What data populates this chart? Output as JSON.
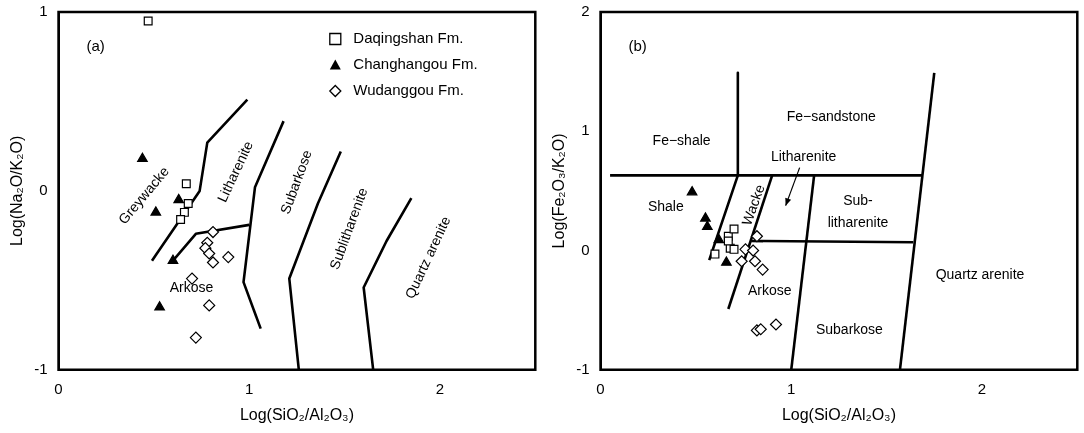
{
  "chart_data": [
    {
      "type": "scatter",
      "title": "(a)",
      "xlabel": "Log(SiO₂/Al₂O₃)",
      "ylabel": "Log(Na₂O/K₂O)",
      "xlim": [
        0,
        2.5
      ],
      "ylim": [
        -1,
        1
      ],
      "xticks": [
        0,
        1,
        2
      ],
      "yticks": [
        -1,
        0,
        1
      ],
      "grid": false,
      "legend": "top right",
      "series": [
        {
          "name": "Daqingshan Fm.",
          "color": "#000000",
          "marker": "square",
          "x": [
            0.47,
            0.67,
            0.68,
            0.66,
            0.64
          ],
          "values": [
            0.95,
            0.04,
            -0.07,
            -0.12,
            -0.16
          ]
        },
        {
          "name": "Changhangou Fm.",
          "color": "#000000",
          "marker": "triangle",
          "x": [
            0.44,
            0.63,
            0.51,
            0.6,
            0.53
          ],
          "values": [
            0.18,
            -0.05,
            -0.12,
            -0.39,
            -0.65
          ]
        },
        {
          "name": "Wudanggou Fm.",
          "color": "#000000",
          "marker": "diamond",
          "x": [
            0.81,
            0.78,
            0.77,
            0.79,
            0.81,
            0.89,
            0.7,
            0.79,
            0.72
          ],
          "values": [
            -0.23,
            -0.29,
            -0.32,
            -0.35,
            -0.4,
            -0.37,
            -0.49,
            -0.64,
            -0.82
          ]
        },
        {
          "type": "line",
          "color": "#000000",
          "marker": "none",
          "x": [
            0.49,
            0.74,
            0.78,
            0.99
          ],
          "values": [
            -0.39,
            0.0,
            0.27,
            0.51
          ]
        },
        {
          "type": "line",
          "color": "#000000",
          "marker": "none",
          "x": [
            0.6,
            0.72,
            1.0
          ],
          "values": [
            -0.39,
            -0.24,
            -0.19
          ]
        },
        {
          "type": "line",
          "color": "#000000",
          "marker": "none",
          "x": [
            1.18,
            1.03,
            0.97,
            1.06
          ],
          "values": [
            0.39,
            0.02,
            -0.51,
            -0.77
          ]
        },
        {
          "type": "line",
          "color": "#000000",
          "marker": "none",
          "x": [
            1.48,
            1.36,
            1.21,
            1.26
          ],
          "values": [
            0.22,
            -0.07,
            -0.49,
            -1.0
          ]
        },
        {
          "type": "line",
          "color": "#000000",
          "marker": "none",
          "x": [
            1.85,
            1.72,
            1.6,
            1.65
          ],
          "values": [
            -0.04,
            -0.28,
            -0.54,
            -1.0
          ]
        }
      ],
      "annotations": [
        "Greywacke",
        "Litharenite",
        "Subarkose",
        "Sublitharenite",
        "Quartz arenite",
        "Arkose"
      ]
    },
    {
      "type": "scatter",
      "title": "(b)",
      "xlabel": "Log(SiO₂/Al₂O₃)",
      "ylabel": "Log(Fe₂O₃/K₂O)",
      "xlim": [
        0,
        2.5
      ],
      "ylim": [
        -1,
        2
      ],
      "xticks": [
        0,
        1,
        2
      ],
      "yticks": [
        -1,
        0,
        1,
        2
      ],
      "grid": false,
      "series": [
        {
          "color": "#000000",
          "marker": "square",
          "x": [
            0.6,
            0.67,
            0.7,
            0.68,
            0.7,
            0.67
          ],
          "values": [
            -0.03,
            0.12,
            0.18,
            0.02,
            0.01,
            0.08
          ]
        },
        {
          "color": "#000000",
          "marker": "triangle",
          "x": [
            0.48,
            0.55,
            0.56,
            0.62,
            0.66
          ],
          "values": [
            0.49,
            0.27,
            0.2,
            0.09,
            -0.1
          ]
        },
        {
          "color": "#000000",
          "marker": "diamond",
          "x": [
            0.82,
            0.76,
            0.8,
            0.74,
            0.81,
            0.85,
            0.82,
            0.84,
            0.92
          ],
          "values": [
            0.12,
            0.01,
            0.0,
            -0.09,
            -0.09,
            -0.16,
            -0.67,
            -0.66,
            -0.62
          ]
        },
        {
          "type": "line",
          "color": "#000000",
          "marker": "none",
          "x": [
            0.05,
            1.69
          ],
          "values": [
            0.63,
            0.63
          ]
        },
        {
          "type": "line",
          "color": "#000000",
          "marker": "none",
          "x": [
            0.72,
            0.72,
            0.57
          ],
          "values": [
            1.49,
            0.63,
            -0.08
          ]
        },
        {
          "type": "line",
          "color": "#000000",
          "marker": "none",
          "x": [
            0.9,
            0.67
          ],
          "values": [
            0.63,
            -0.49
          ]
        },
        {
          "type": "line",
          "color": "#000000",
          "marker": "none",
          "x": [
            0.79,
            1.64
          ],
          "values": [
            0.08,
            0.07
          ]
        },
        {
          "type": "line",
          "color": "#000000",
          "marker": "none",
          "x": [
            1.12,
            1.0
          ],
          "values": [
            0.63,
            -1.0
          ]
        },
        {
          "type": "line",
          "color": "#000000",
          "marker": "none",
          "x": [
            1.75,
            1.57
          ],
          "values": [
            1.49,
            -1.0
          ]
        }
      ],
      "annotations": [
        "Fe−shale",
        "Fe−sandstone",
        "Litharenite",
        "Shale",
        "Wacke",
        "Sub-\nlitharenite",
        "Quartz arenite",
        "Arkose",
        "Subarkose"
      ]
    }
  ]
}
